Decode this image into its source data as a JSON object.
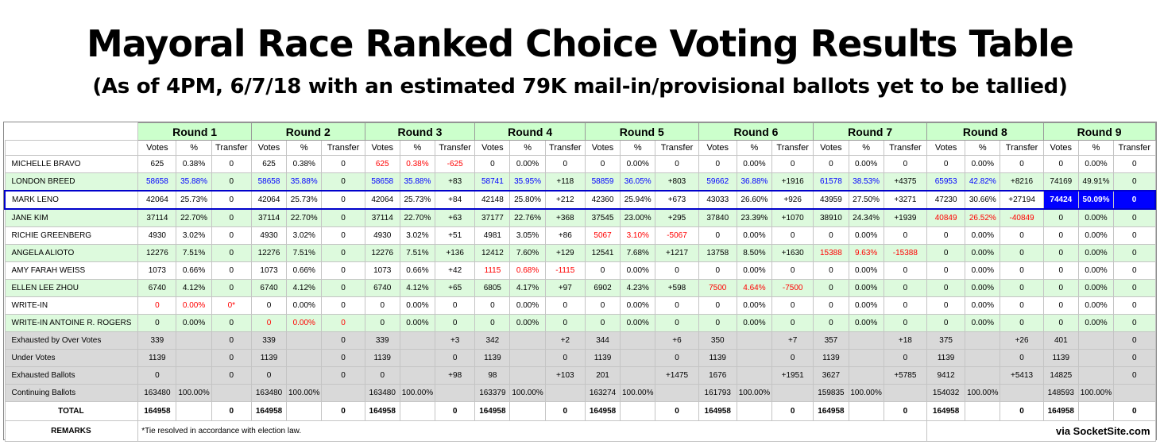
{
  "title": "Mayoral Race Ranked Choice Voting Results Table",
  "subtitle": "(As of 4PM, 6/7/18 with an estimated 79K mail-in/provisional ballots yet to be tallied)",
  "rounds": [
    "Round 1",
    "Round 2",
    "Round 3",
    "Round 4",
    "Round 5",
    "Round 6",
    "Round 7",
    "Round 8",
    "Round 9"
  ],
  "subheaders": [
    "Votes",
    "%",
    "Transfer"
  ],
  "rows": [
    {
      "name": "MICHELLE BRAVO",
      "style": "white",
      "cells": [
        [
          "625",
          "0.38%",
          "0"
        ],
        [
          "625",
          "0.38%",
          "0"
        ],
        [
          "625",
          "0.38%",
          "-625"
        ],
        [
          "0",
          "0.00%",
          "0"
        ],
        [
          "0",
          "0.00%",
          "0"
        ],
        [
          "0",
          "0.00%",
          "0"
        ],
        [
          "0",
          "0.00%",
          "0"
        ],
        [
          "0",
          "0.00%",
          "0"
        ],
        [
          "0",
          "0.00%",
          "0"
        ]
      ],
      "red_rounds": [
        2
      ]
    },
    {
      "name": "LONDON BREED",
      "style": "green",
      "cells": [
        [
          "58658",
          "35.88%",
          "0"
        ],
        [
          "58658",
          "35.88%",
          "0"
        ],
        [
          "58658",
          "35.88%",
          "+83"
        ],
        [
          "58741",
          "35.95%",
          "+118"
        ],
        [
          "58859",
          "36.05%",
          "+803"
        ],
        [
          "59662",
          "36.88%",
          "+1916"
        ],
        [
          "61578",
          "38.53%",
          "+4375"
        ],
        [
          "65953",
          "42.82%",
          "+8216"
        ],
        [
          "74169",
          "49.91%",
          "0"
        ]
      ],
      "blue_rounds": [
        0,
        1,
        2,
        3,
        4,
        5,
        6,
        7
      ]
    },
    {
      "name": "MARK LENO",
      "style": "white",
      "leno": true,
      "cells": [
        [
          "42064",
          "25.73%",
          "0"
        ],
        [
          "42064",
          "25.73%",
          "0"
        ],
        [
          "42064",
          "25.73%",
          "+84"
        ],
        [
          "42148",
          "25.80%",
          "+212"
        ],
        [
          "42360",
          "25.94%",
          "+673"
        ],
        [
          "43033",
          "26.60%",
          "+926"
        ],
        [
          "43959",
          "27.50%",
          "+3271"
        ],
        [
          "47230",
          "30.66%",
          "+27194"
        ],
        [
          "74424",
          "50.09%",
          "0"
        ]
      ],
      "winner_round": 8
    },
    {
      "name": "JANE KIM",
      "style": "green",
      "cells": [
        [
          "37114",
          "22.70%",
          "0"
        ],
        [
          "37114",
          "22.70%",
          "0"
        ],
        [
          "37114",
          "22.70%",
          "+63"
        ],
        [
          "37177",
          "22.76%",
          "+368"
        ],
        [
          "37545",
          "23.00%",
          "+295"
        ],
        [
          "37840",
          "23.39%",
          "+1070"
        ],
        [
          "38910",
          "24.34%",
          "+1939"
        ],
        [
          "40849",
          "26.52%",
          "-40849"
        ],
        [
          "0",
          "0.00%",
          "0"
        ]
      ],
      "red_rounds": [
        7
      ]
    },
    {
      "name": "RICHIE GREENBERG",
      "style": "white",
      "cells": [
        [
          "4930",
          "3.02%",
          "0"
        ],
        [
          "4930",
          "3.02%",
          "0"
        ],
        [
          "4930",
          "3.02%",
          "+51"
        ],
        [
          "4981",
          "3.05%",
          "+86"
        ],
        [
          "5067",
          "3.10%",
          "-5067"
        ],
        [
          "0",
          "0.00%",
          "0"
        ],
        [
          "0",
          "0.00%",
          "0"
        ],
        [
          "0",
          "0.00%",
          "0"
        ],
        [
          "0",
          "0.00%",
          "0"
        ]
      ],
      "red_rounds": [
        4
      ]
    },
    {
      "name": "ANGELA ALIOTO",
      "style": "green",
      "cells": [
        [
          "12276",
          "7.51%",
          "0"
        ],
        [
          "12276",
          "7.51%",
          "0"
        ],
        [
          "12276",
          "7.51%",
          "+136"
        ],
        [
          "12412",
          "7.60%",
          "+129"
        ],
        [
          "12541",
          "7.68%",
          "+1217"
        ],
        [
          "13758",
          "8.50%",
          "+1630"
        ],
        [
          "15388",
          "9.63%",
          "-15388"
        ],
        [
          "0",
          "0.00%",
          "0"
        ],
        [
          "0",
          "0.00%",
          "0"
        ]
      ],
      "red_rounds": [
        6
      ]
    },
    {
      "name": "AMY FARAH WEISS",
      "style": "white",
      "cells": [
        [
          "1073",
          "0.66%",
          "0"
        ],
        [
          "1073",
          "0.66%",
          "0"
        ],
        [
          "1073",
          "0.66%",
          "+42"
        ],
        [
          "1115",
          "0.68%",
          "-1115"
        ],
        [
          "0",
          "0.00%",
          "0"
        ],
        [
          "0",
          "0.00%",
          "0"
        ],
        [
          "0",
          "0.00%",
          "0"
        ],
        [
          "0",
          "0.00%",
          "0"
        ],
        [
          "0",
          "0.00%",
          "0"
        ]
      ],
      "red_rounds": [
        3
      ]
    },
    {
      "name": "ELLEN LEE ZHOU",
      "style": "green",
      "cells": [
        [
          "6740",
          "4.12%",
          "0"
        ],
        [
          "6740",
          "4.12%",
          "0"
        ],
        [
          "6740",
          "4.12%",
          "+65"
        ],
        [
          "6805",
          "4.17%",
          "+97"
        ],
        [
          "6902",
          "4.23%",
          "+598"
        ],
        [
          "7500",
          "4.64%",
          "-7500"
        ],
        [
          "0",
          "0.00%",
          "0"
        ],
        [
          "0",
          "0.00%",
          "0"
        ],
        [
          "0",
          "0.00%",
          "0"
        ]
      ],
      "red_rounds": [
        5
      ]
    },
    {
      "name": "WRITE-IN",
      "style": "white",
      "cells": [
        [
          "0",
          "0.00%",
          "0*"
        ],
        [
          "0",
          "0.00%",
          "0"
        ],
        [
          "0",
          "0.00%",
          "0"
        ],
        [
          "0",
          "0.00%",
          "0"
        ],
        [
          "0",
          "0.00%",
          "0"
        ],
        [
          "0",
          "0.00%",
          "0"
        ],
        [
          "0",
          "0.00%",
          "0"
        ],
        [
          "0",
          "0.00%",
          "0"
        ],
        [
          "0",
          "0.00%",
          "0"
        ]
      ],
      "red_rounds": [
        0
      ]
    },
    {
      "name": "WRITE-IN ANTOINE R. ROGERS",
      "style": "green",
      "cells": [
        [
          "0",
          "0.00%",
          "0"
        ],
        [
          "0",
          "0.00%",
          "0"
        ],
        [
          "0",
          "0.00%",
          "0"
        ],
        [
          "0",
          "0.00%",
          "0"
        ],
        [
          "0",
          "0.00%",
          "0"
        ],
        [
          "0",
          "0.00%",
          "0"
        ],
        [
          "0",
          "0.00%",
          "0"
        ],
        [
          "0",
          "0.00%",
          "0"
        ],
        [
          "0",
          "0.00%",
          "0"
        ]
      ],
      "red_rounds": [
        1
      ]
    },
    {
      "name": "Exhausted by Over Votes",
      "style": "gray",
      "cells": [
        [
          "339",
          "",
          "0"
        ],
        [
          "339",
          "",
          "0"
        ],
        [
          "339",
          "",
          "+3"
        ],
        [
          "342",
          "",
          "+2"
        ],
        [
          "344",
          "",
          "+6"
        ],
        [
          "350",
          "",
          "+7"
        ],
        [
          "357",
          "",
          "+18"
        ],
        [
          "375",
          "",
          "+26"
        ],
        [
          "401",
          "",
          "0"
        ]
      ]
    },
    {
      "name": "Under Votes",
      "style": "gray",
      "cells": [
        [
          "1139",
          "",
          "0"
        ],
        [
          "1139",
          "",
          "0"
        ],
        [
          "1139",
          "",
          "0"
        ],
        [
          "1139",
          "",
          "0"
        ],
        [
          "1139",
          "",
          "0"
        ],
        [
          "1139",
          "",
          "0"
        ],
        [
          "1139",
          "",
          "0"
        ],
        [
          "1139",
          "",
          "0"
        ],
        [
          "1139",
          "",
          "0"
        ]
      ]
    },
    {
      "name": "Exhausted Ballots",
      "style": "gray",
      "cells": [
        [
          "0",
          "",
          "0"
        ],
        [
          "0",
          "",
          "0"
        ],
        [
          "0",
          "",
          "+98"
        ],
        [
          "98",
          "",
          "+103"
        ],
        [
          "201",
          "",
          "+1475"
        ],
        [
          "1676",
          "",
          "+1951"
        ],
        [
          "3627",
          "",
          "+5785"
        ],
        [
          "9412",
          "",
          "+5413"
        ],
        [
          "14825",
          "",
          "0"
        ]
      ]
    },
    {
      "name": "Continuing Ballots",
      "style": "gray",
      "cells": [
        [
          "163480",
          "100.00%",
          ""
        ],
        [
          "163480",
          "100.00%",
          ""
        ],
        [
          "163480",
          "100.00%",
          ""
        ],
        [
          "163379",
          "100.00%",
          ""
        ],
        [
          "163274",
          "100.00%",
          ""
        ],
        [
          "161793",
          "100.00%",
          ""
        ],
        [
          "159835",
          "100.00%",
          ""
        ],
        [
          "154032",
          "100.00%",
          ""
        ],
        [
          "148593",
          "100.00%",
          ""
        ]
      ]
    },
    {
      "name": "TOTAL",
      "style": "total",
      "cells": [
        [
          "164958",
          "",
          "0"
        ],
        [
          "164958",
          "",
          "0"
        ],
        [
          "164958",
          "",
          "0"
        ],
        [
          "164958",
          "",
          "0"
        ],
        [
          "164958",
          "",
          "0"
        ],
        [
          "164958",
          "",
          "0"
        ],
        [
          "164958",
          "",
          "0"
        ],
        [
          "164958",
          "",
          "0"
        ],
        [
          "164958",
          "",
          "0"
        ]
      ]
    }
  ],
  "remarks": {
    "label": "REMARKS",
    "text": "*Tie resolved in accordance with election law.",
    "credit": "via SocketSite.com"
  }
}
